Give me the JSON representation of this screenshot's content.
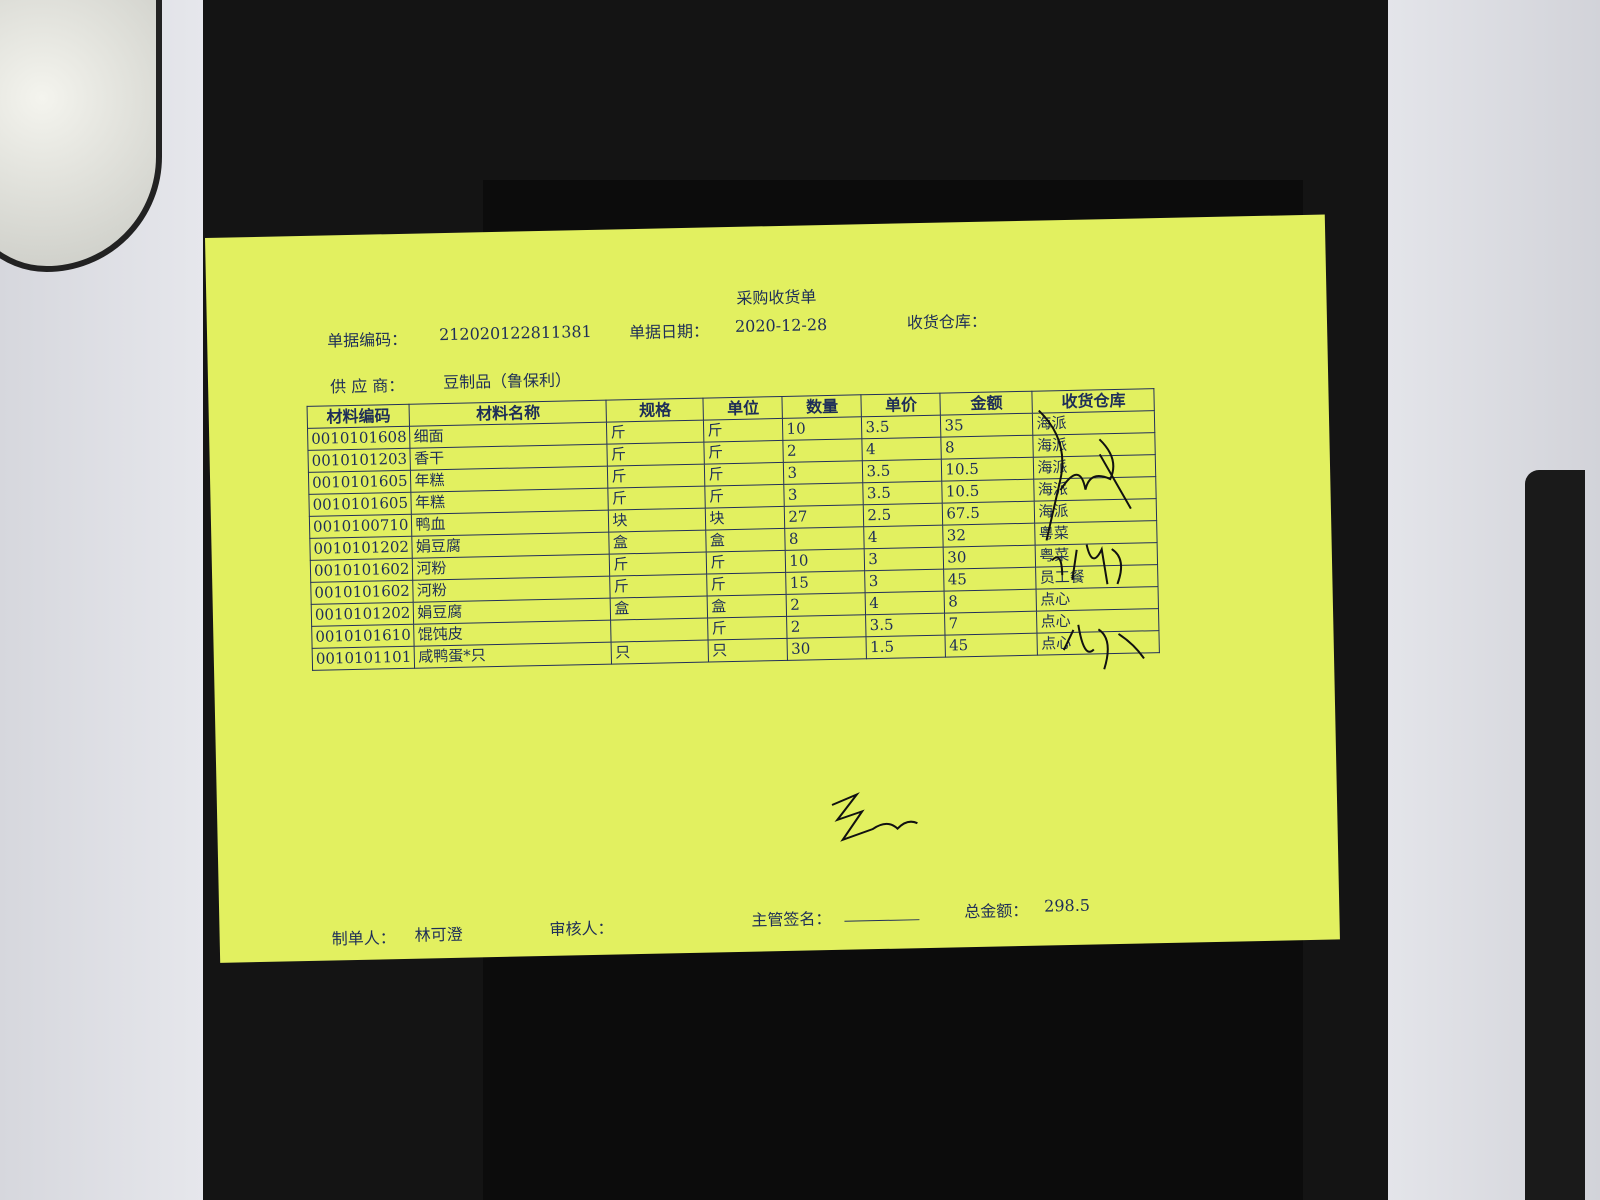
{
  "document": {
    "title": "采购收货单",
    "fields": {
      "doc_no_label": "单据编码：",
      "doc_no": "212020122811381",
      "date_label": "单据日期：",
      "date": "2020-12-28",
      "warehouse_label": "收货仓库：",
      "supplier_label": "供 应 商：",
      "supplier": "豆制品（鲁保利）"
    },
    "table": {
      "headers": [
        "材料编码",
        "材料名称",
        "规格",
        "单位",
        "数量",
        "单价",
        "金额",
        "收货仓库"
      ],
      "rows": [
        [
          "0010101608",
          "细面",
          "斤",
          "斤",
          "10",
          "3.5",
          "35",
          "海派"
        ],
        [
          "0010101203",
          "香干",
          "斤",
          "斤",
          "2",
          "4",
          "8",
          "海派"
        ],
        [
          "0010101605",
          "年糕",
          "斤",
          "斤",
          "3",
          "3.5",
          "10.5",
          "海派"
        ],
        [
          "0010101605",
          "年糕",
          "斤",
          "斤",
          "3",
          "3.5",
          "10.5",
          "海派"
        ],
        [
          "0010100710",
          "鸭血",
          "块",
          "块",
          "27",
          "2.5",
          "67.5",
          "海派"
        ],
        [
          "0010101202",
          "娟豆腐",
          "盒",
          "盒",
          "8",
          "4",
          "32",
          "粤菜"
        ],
        [
          "0010101602",
          "河粉",
          "斤",
          "斤",
          "10",
          "3",
          "30",
          "粤菜"
        ],
        [
          "0010101602",
          "河粉",
          "斤",
          "斤",
          "15",
          "3",
          "45",
          "员工餐"
        ],
        [
          "0010101202",
          "娟豆腐",
          "盒",
          "盒",
          "2",
          "4",
          "8",
          "点心"
        ],
        [
          "0010101610",
          "馄饨皮",
          "",
          "斤",
          "2",
          "3.5",
          "7",
          "点心"
        ],
        [
          "0010101101",
          "咸鸭蛋*只",
          "只",
          "只",
          "30",
          "1.5",
          "45",
          "点心"
        ]
      ]
    },
    "footer": {
      "maker_label": "制单人：",
      "maker": "林可澄",
      "reviewer_label": "审核人：",
      "supervisor_label": "主管签名：",
      "total_label": "总金额：",
      "total": "298.5"
    },
    "paper_color": "#e2f060"
  }
}
